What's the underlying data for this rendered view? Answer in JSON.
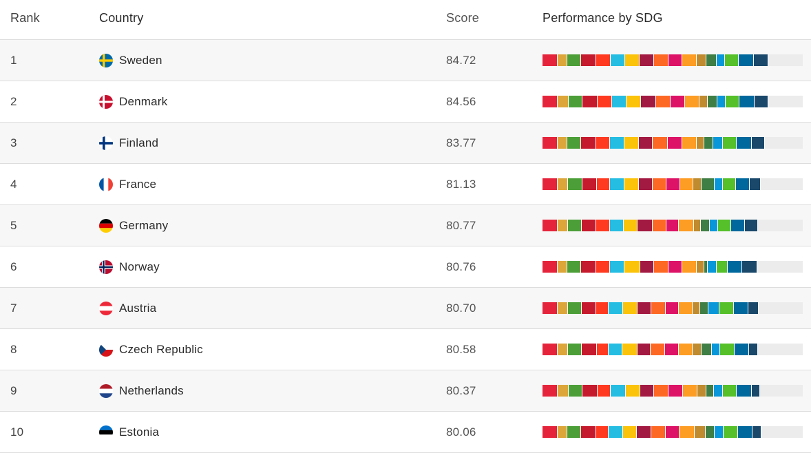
{
  "columns": {
    "rank": "Rank",
    "country": "Country",
    "score": "Score",
    "performance": "Performance by SDG"
  },
  "sdg_colors": [
    "#e5243b",
    "#dda63a",
    "#4c9f38",
    "#c5192d",
    "#ff3a21",
    "#26bde2",
    "#fcc30b",
    "#a21942",
    "#fd6925",
    "#dd1367",
    "#fd9d24",
    "#bf8b2e",
    "#3f7e44",
    "#0a97d9",
    "#56c02b",
    "#00689d",
    "#19486a"
  ],
  "rows": [
    {
      "rank": "1",
      "country": "Sweden",
      "flag": "sweden-flag-icon",
      "score": "84.72",
      "score_value": 84.72,
      "sdg_scores": [
        100,
        62,
        92,
        97,
        94,
        93,
        98,
        91,
        95,
        93,
        95,
        61,
        68,
        55,
        90,
        96,
        97
      ]
    },
    {
      "rank": "2",
      "country": "Denmark",
      "flag": "denmark-flag-icon",
      "score": "84.56",
      "score_value": 84.56,
      "sdg_scores": [
        100,
        70,
        93,
        98,
        92,
        95,
        96,
        97,
        94,
        95,
        94,
        55,
        62,
        57,
        90,
        96,
        94
      ]
    },
    {
      "rank": "3",
      "country": "Finland",
      "flag": "finland-flag-icon",
      "score": "83.77",
      "score_value": 83.77,
      "sdg_scores": [
        100,
        60,
        92,
        99,
        90,
        93,
        97,
        91,
        95,
        96,
        94,
        52,
        59,
        62,
        90,
        98,
        85
      ]
    },
    {
      "rank": "4",
      "country": "France",
      "flag": "france-flag-icon",
      "score": "81.13",
      "score_value": 81.13,
      "sdg_scores": [
        100,
        67,
        92,
        97,
        87,
        92,
        95,
        88,
        94,
        87,
        88,
        52,
        85,
        57,
        85,
        88,
        72
      ]
    },
    {
      "rank": "5",
      "country": "Germany",
      "flag": "germany-flag-icon",
      "score": "80.77",
      "score_value": 80.77,
      "sdg_scores": [
        100,
        66,
        92,
        95,
        86,
        91,
        93,
        95,
        94,
        80,
        96,
        47,
        59,
        55,
        85,
        90,
        83
      ]
    },
    {
      "rank": "6",
      "country": "Norway",
      "flag": "norway-flag-icon",
      "score": "80.76",
      "score_value": 80.76,
      "sdg_scores": [
        100,
        60,
        92,
        98,
        92,
        95,
        100,
        90,
        95,
        90,
        97,
        50,
        20,
        60,
        70,
        95,
        100
      ]
    },
    {
      "rank": "7",
      "country": "Austria",
      "flag": "austria-flag-icon",
      "score": "80.70",
      "score_value": 80.7,
      "sdg_scores": [
        100,
        65,
        92,
        92,
        83,
        95,
        93,
        90,
        95,
        88,
        88,
        50,
        55,
        70,
        95,
        95,
        66
      ]
    },
    {
      "rank": "8",
      "country": "Czech Republic",
      "flag": "czech-republic-flag-icon",
      "score": "80.58",
      "score_value": 80.58,
      "sdg_scores": [
        100,
        65,
        92,
        97,
        77,
        92,
        97,
        88,
        92,
        90,
        89,
        58,
        70,
        55,
        95,
        95,
        55
      ]
    },
    {
      "rank": "9",
      "country": "Netherlands",
      "flag": "netherlands-flag-icon",
      "score": "80.37",
      "score_value": 80.37,
      "sdg_scores": [
        100,
        70,
        92,
        98,
        87,
        97,
        96,
        90,
        95,
        95,
        94,
        55,
        50,
        60,
        90,
        98,
        55
      ]
    },
    {
      "rank": "10",
      "country": "Estonia",
      "flag": "estonia-flag-icon",
      "score": "80.06",
      "score_value": 80.06,
      "sdg_scores": [
        100,
        60,
        92,
        97,
        83,
        95,
        90,
        92,
        95,
        93,
        96,
        75,
        58,
        55,
        95,
        96,
        60
      ]
    }
  ]
}
